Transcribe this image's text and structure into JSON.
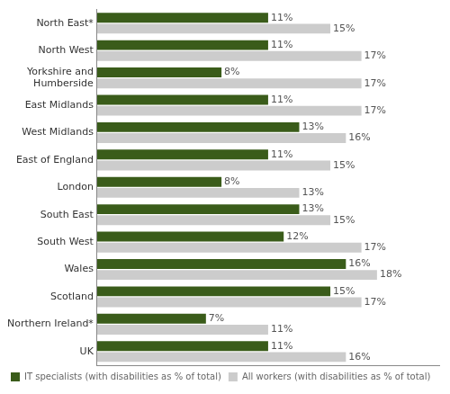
{
  "chart_data": {
    "type": "bar",
    "orientation": "horizontal",
    "categories": [
      "North East*",
      "North West",
      "Yorkshire and\nHumberside",
      "East Midlands",
      "West Midlands",
      "East of England",
      "London",
      "South East",
      "South West",
      "Wales",
      "Scotland",
      "Northern Ireland*",
      "UK"
    ],
    "series": [
      {
        "name": "IT specialists (with disabilities as % of total)",
        "color": "#3a5c1a",
        "values": [
          11,
          11,
          8,
          11,
          13,
          11,
          8,
          13,
          12,
          16,
          15,
          7,
          11
        ],
        "value_labels": [
          "11%",
          "11%",
          "8%",
          "11%",
          "13%",
          "11%",
          "8%",
          "13%",
          "12%",
          "16%",
          "15%",
          "7%",
          "11%"
        ]
      },
      {
        "name": "All workers (with disabilities as % of total)",
        "color": "#cccccc",
        "values": [
          15,
          17,
          17,
          17,
          16,
          15,
          13,
          15,
          17,
          18,
          17,
          11,
          16
        ],
        "value_labels": [
          "15%",
          "17%",
          "17%",
          "17%",
          "16%",
          "15%",
          "13%",
          "15%",
          "17%",
          "18%",
          "17%",
          "11%",
          "16%"
        ]
      }
    ],
    "xlim": [
      0,
      22
    ],
    "data_labels": true,
    "tick_labels": "y",
    "grid": false,
    "legend": "bottom"
  }
}
